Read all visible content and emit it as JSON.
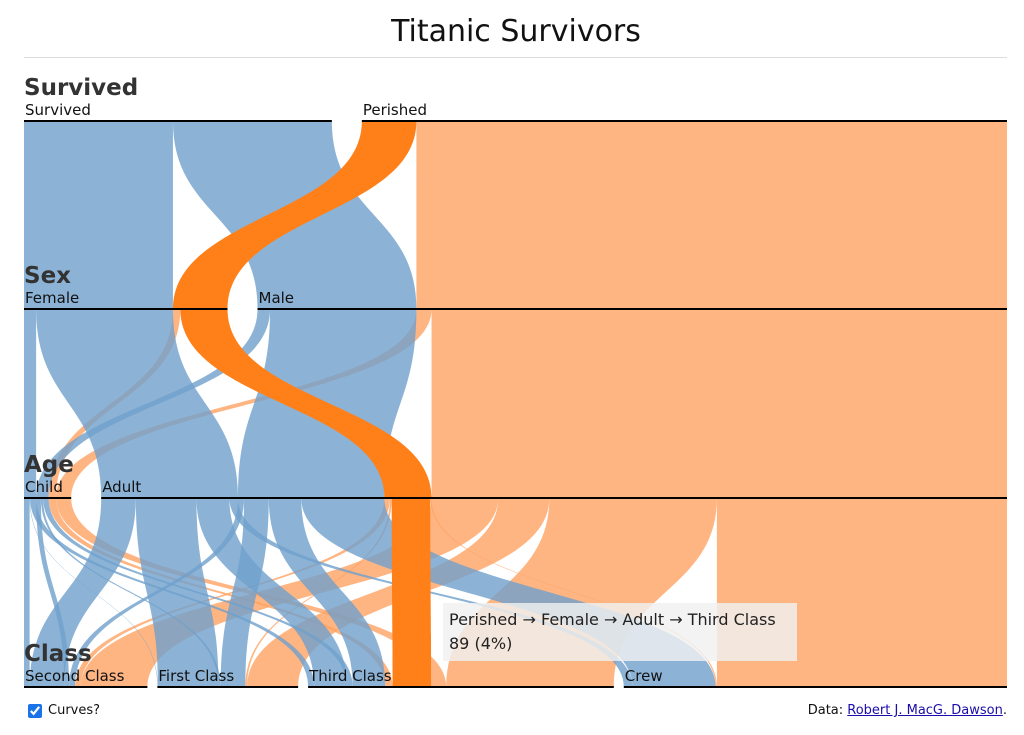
{
  "page": {
    "title": "Titanic Survivors",
    "curves_label": "Curves?",
    "curves_checked": true,
    "credit_prefix": "Data: ",
    "credit_link": "Robert J. MacG. Dawson",
    "credit_suffix": "."
  },
  "tooltip": {
    "path": "Perished → Female → Adult → Third Class",
    "value": "89 (4%)"
  },
  "colors": {
    "survived": "#6fa0cc",
    "perished": "#ffa263",
    "highlight": "#ff7f19",
    "axis": "#000000"
  },
  "chart_data": {
    "type": "parallel-sets",
    "title": "Titanic Survivors",
    "dimensions": [
      {
        "name": "Survived",
        "categories": [
          "Survived",
          "Perished"
        ]
      },
      {
        "name": "Sex",
        "categories": [
          "Female",
          "Male"
        ]
      },
      {
        "name": "Age",
        "categories": [
          "Child",
          "Adult"
        ]
      },
      {
        "name": "Class",
        "categories": [
          "Second Class",
          "First Class",
          "Third Class",
          "Crew"
        ]
      }
    ],
    "records": [
      {
        "Survived": "Survived",
        "Sex": "Female",
        "Age": "Child",
        "Class": "Second Class",
        "count": 13
      },
      {
        "Survived": "Survived",
        "Sex": "Female",
        "Age": "Child",
        "Class": "First Class",
        "count": 1
      },
      {
        "Survived": "Survived",
        "Sex": "Female",
        "Age": "Child",
        "Class": "Third Class",
        "count": 14
      },
      {
        "Survived": "Survived",
        "Sex": "Female",
        "Age": "Adult",
        "Class": "Second Class",
        "count": 80
      },
      {
        "Survived": "Survived",
        "Sex": "Female",
        "Age": "Adult",
        "Class": "First Class",
        "count": 140
      },
      {
        "Survived": "Survived",
        "Sex": "Female",
        "Age": "Adult",
        "Class": "Third Class",
        "count": 76
      },
      {
        "Survived": "Survived",
        "Sex": "Female",
        "Age": "Adult",
        "Class": "Crew",
        "count": 20
      },
      {
        "Survived": "Survived",
        "Sex": "Male",
        "Age": "Child",
        "Class": "Second Class",
        "count": 11
      },
      {
        "Survived": "Survived",
        "Sex": "Male",
        "Age": "Child",
        "Class": "First Class",
        "count": 5
      },
      {
        "Survived": "Survived",
        "Sex": "Male",
        "Age": "Child",
        "Class": "Third Class",
        "count": 13
      },
      {
        "Survived": "Survived",
        "Sex": "Male",
        "Age": "Adult",
        "Class": "Second Class",
        "count": 14
      },
      {
        "Survived": "Survived",
        "Sex": "Male",
        "Age": "Adult",
        "Class": "First Class",
        "count": 57
      },
      {
        "Survived": "Survived",
        "Sex": "Male",
        "Age": "Adult",
        "Class": "Third Class",
        "count": 75
      },
      {
        "Survived": "Survived",
        "Sex": "Male",
        "Age": "Adult",
        "Class": "Crew",
        "count": 192
      },
      {
        "Survived": "Perished",
        "Sex": "Female",
        "Age": "Child",
        "Class": "Third Class",
        "count": 17
      },
      {
        "Survived": "Perished",
        "Sex": "Female",
        "Age": "Adult",
        "Class": "Second Class",
        "count": 13
      },
      {
        "Survived": "Perished",
        "Sex": "Female",
        "Age": "Adult",
        "Class": "First Class",
        "count": 4
      },
      {
        "Survived": "Perished",
        "Sex": "Female",
        "Age": "Adult",
        "Class": "Third Class",
        "count": 89
      },
      {
        "Survived": "Perished",
        "Sex": "Female",
        "Age": "Adult",
        "Class": "Crew",
        "count": 3
      },
      {
        "Survived": "Perished",
        "Sex": "Male",
        "Age": "Child",
        "Class": "Third Class",
        "count": 35
      },
      {
        "Survived": "Perished",
        "Sex": "Male",
        "Age": "Adult",
        "Class": "Second Class",
        "count": 154
      },
      {
        "Survived": "Perished",
        "Sex": "Male",
        "Age": "Adult",
        "Class": "First Class",
        "count": 118
      },
      {
        "Survived": "Perished",
        "Sex": "Male",
        "Age": "Adult",
        "Class": "Third Class",
        "count": 387
      },
      {
        "Survived": "Perished",
        "Sex": "Male",
        "Age": "Adult",
        "Class": "Crew",
        "count": 670
      }
    ],
    "highlighted": {
      "Survived": "Perished",
      "Sex": "Female",
      "Age": "Adult",
      "Class": "Third Class"
    },
    "curves": true
  }
}
